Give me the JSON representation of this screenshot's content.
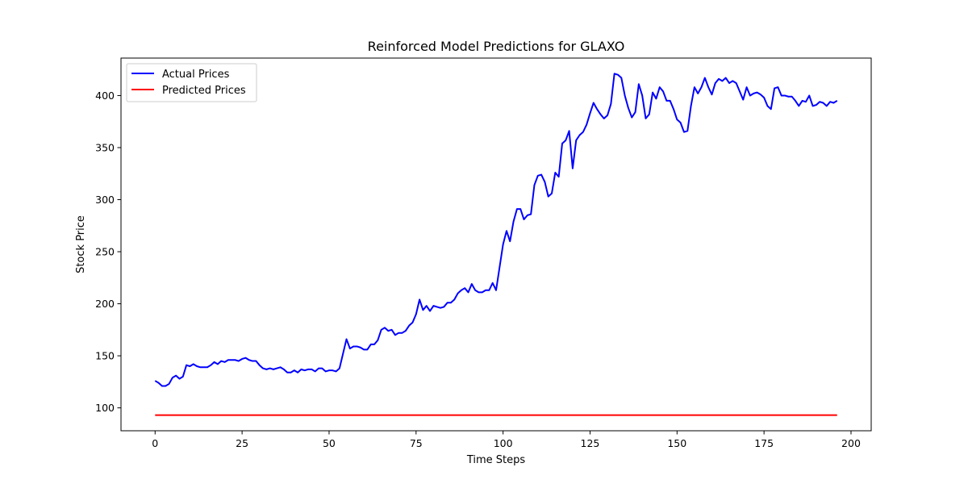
{
  "chart_data": {
    "type": "line",
    "title": "Reinforced Model Predictions for GLAXO",
    "xlabel": "Time Steps",
    "ylabel": "Stock Price",
    "xlim": [
      -9.8,
      205.8
    ],
    "ylim": [
      78,
      436
    ],
    "xticks": [
      0,
      25,
      50,
      75,
      100,
      125,
      150,
      175,
      200
    ],
    "yticks": [
      100,
      150,
      200,
      250,
      300,
      350,
      400
    ],
    "grid": false,
    "legend_position": "top-left",
    "series": [
      {
        "name": "Actual Prices",
        "color": "#0000ff",
        "values": [
          126,
          124,
          121,
          121,
          123,
          129,
          131,
          128,
          130,
          141,
          140,
          142,
          140,
          139,
          139,
          139,
          141,
          144,
          142,
          145,
          144,
          146,
          146,
          146,
          145,
          147,
          148,
          146,
          145,
          145,
          141,
          138,
          137,
          138,
          137,
          138,
          139,
          137,
          134,
          134,
          136,
          134,
          137,
          136,
          137,
          137,
          135,
          138,
          138,
          135,
          136,
          136,
          135,
          138,
          152,
          166,
          157,
          159,
          159,
          158,
          156,
          156,
          161,
          161,
          165,
          175,
          177,
          174,
          175,
          170,
          172,
          172,
          174,
          179,
          182,
          190,
          204,
          194,
          198,
          193,
          198,
          197,
          196,
          197,
          201,
          201,
          204,
          210,
          213,
          215,
          211,
          219,
          213,
          211,
          211,
          213,
          213,
          220,
          213,
          235,
          257,
          270,
          260,
          279,
          291,
          291,
          281,
          285,
          286,
          314,
          323,
          324,
          317,
          303,
          306,
          326,
          322,
          354,
          357,
          366,
          330,
          357,
          362,
          365,
          372,
          383,
          393,
          387,
          382,
          378,
          381,
          392,
          421,
          420,
          417,
          400,
          388,
          379,
          384,
          411,
          400,
          378,
          382,
          403,
          397,
          408,
          404,
          395,
          395,
          387,
          377,
          374,
          365,
          366,
          390,
          408,
          402,
          408,
          417,
          408,
          401,
          412,
          416,
          414,
          417,
          412,
          414,
          412,
          404,
          396,
          408,
          400,
          402,
          403,
          401,
          398,
          390,
          387,
          407,
          408,
          400,
          400,
          399,
          399,
          395,
          390,
          395,
          394,
          400,
          390,
          391,
          394,
          393,
          390,
          394,
          393,
          395
        ]
      },
      {
        "name": "Predicted Prices",
        "color": "#ff0000",
        "constant": 93,
        "x_start": 0,
        "x_end": 196
      }
    ]
  }
}
